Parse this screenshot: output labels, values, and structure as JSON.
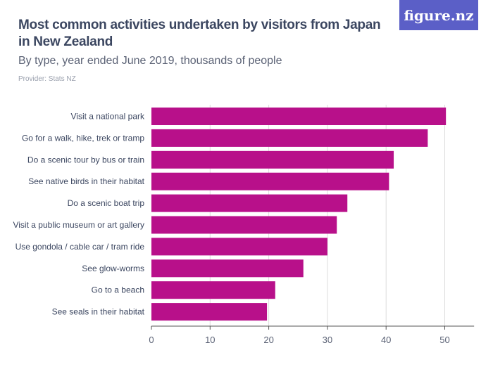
{
  "header": {
    "title": "Most common activities undertaken by visitors from Japan in New Zealand",
    "subtitle": "By type, year ended June 2019, thousands of people",
    "provider": "Provider: Stats NZ",
    "logo": "figure.nz"
  },
  "chart_data": {
    "type": "bar",
    "orientation": "horizontal",
    "title": "Most common activities undertaken by visitors from Japan in New Zealand",
    "subtitle": "By type, year ended June 2019, thousands of people",
    "categories": [
      "Visit a national park",
      "Go for a walk, hike, trek or tramp",
      "Do a scenic tour by bus or train",
      "See native birds in their habitat",
      "Do a scenic boat trip",
      "Visit a public museum or art gallery",
      "Use gondola / cable car / tram ride",
      "See glow-worms",
      "Go to a beach",
      "See seals in their habitat"
    ],
    "values": [
      50.2,
      47.1,
      41.3,
      40.5,
      33.4,
      31.6,
      30.0,
      25.9,
      21.1,
      19.7
    ],
    "xlim": [
      0,
      55
    ],
    "xticks": [
      0,
      10,
      20,
      30,
      40,
      50
    ],
    "grid": true,
    "color": "#b8108a"
  }
}
